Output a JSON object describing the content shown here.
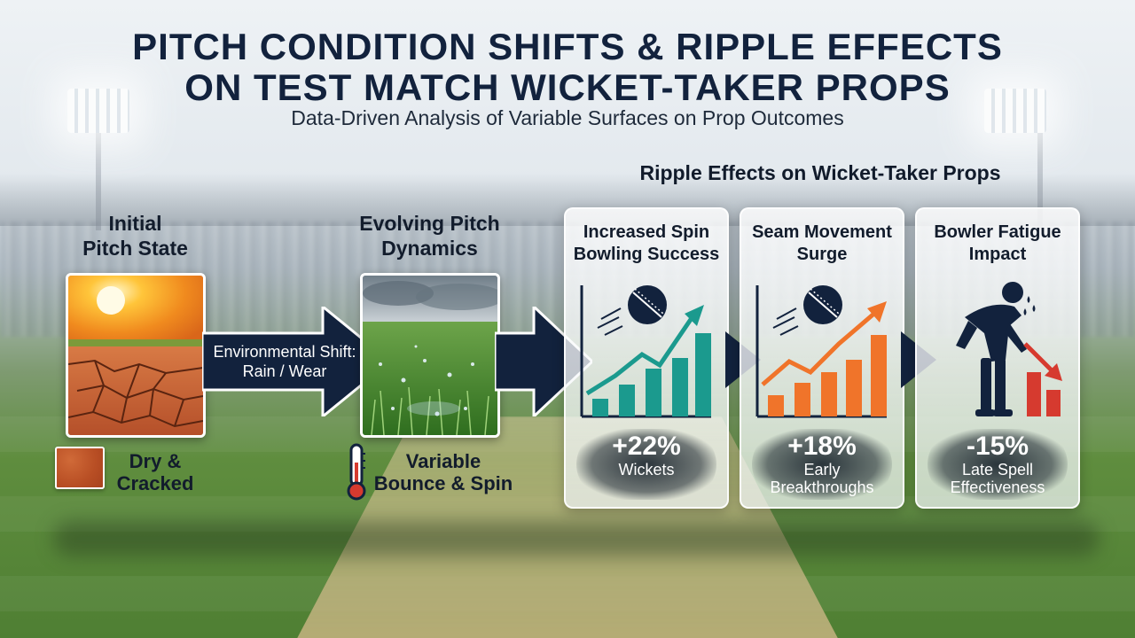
{
  "header": {
    "title_line1": "PITCH CONDITION SHIFTS & RIPPLE EFFECTS",
    "title_line2": "ON TEST MATCH WICKET-TAKER PROPS",
    "subtitle": "Data-Driven Analysis of Variable Surfaces on Prop Outcomes"
  },
  "flow": {
    "initial": {
      "label_line1": "Initial",
      "label_line2": "Pitch State",
      "legend_line1": "Dry &",
      "legend_line2": "Cracked"
    },
    "shift": {
      "line1": "Environmental Shift:",
      "line2": "Rain / Wear"
    },
    "evolving": {
      "label_line1": "Evolving Pitch",
      "label_line2": "Dynamics",
      "legend_line1": "Variable",
      "legend_line2": "Bounce & Spin"
    }
  },
  "ripple": {
    "heading": "Ripple Effects on Wicket-Taker Props",
    "cards": [
      {
        "title_line1": "Increased Spin",
        "title_line2": "Bowling Success",
        "stat": "+22%",
        "desc_line1": "Wickets",
        "desc_line2": "",
        "color": "#1b9a8e",
        "trend": "up",
        "icon": "cricket-ball-icon"
      },
      {
        "title_line1": "Seam Movement",
        "title_line2": "Surge",
        "stat": "+18%",
        "desc_line1": "Early",
        "desc_line2": "Breakthroughs",
        "color": "#f0742a",
        "trend": "up",
        "icon": "cricket-ball-icon"
      },
      {
        "title_line1": "Bowler Fatigue",
        "title_line2": "Impact",
        "stat": "-15%",
        "desc_line1": "Late Spell",
        "desc_line2": "Effectiveness",
        "color": "#d63a2f",
        "trend": "down",
        "icon": "tired-bowler-icon"
      }
    ]
  },
  "colors": {
    "navy": "#12223d",
    "teal": "#1b9a8e",
    "orange": "#f0742a",
    "red": "#d63a2f"
  }
}
